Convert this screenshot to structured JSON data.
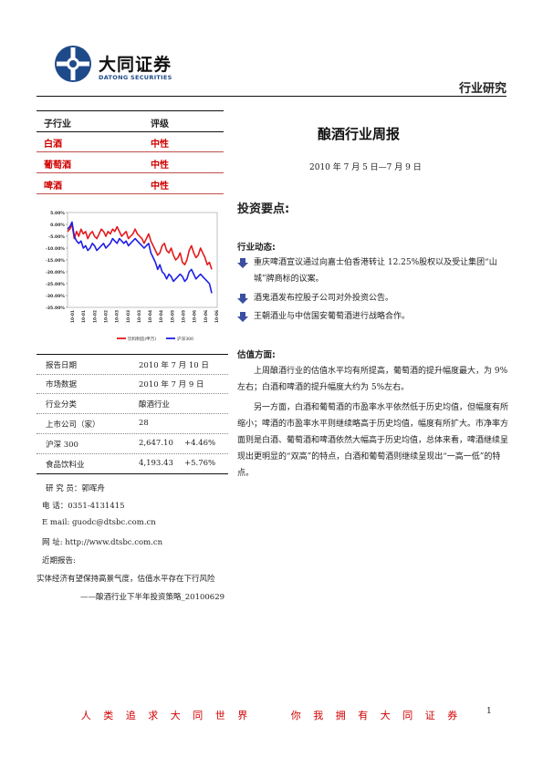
{
  "header": {
    "logo_cn": "大同证券",
    "logo_en": "DATONG SECURITIES",
    "report_type": "行业研究"
  },
  "ratings": {
    "col1": "子行业",
    "col2": "评级",
    "rows": [
      {
        "sector": "白酒",
        "rating": "中性"
      },
      {
        "sector": "葡萄酒",
        "rating": "中性"
      },
      {
        "sector": "啤酒",
        "rating": "中性"
      }
    ]
  },
  "chart_data": {
    "type": "line",
    "x_labels": [
      "10-01",
      "10-01",
      "10-02",
      "10-02",
      "10-03",
      "10-03",
      "10-03",
      "10-04",
      "10-04",
      "10-05",
      "10-05",
      "10-06",
      "10-06",
      "10-06"
    ],
    "yticks": [
      "5.00%",
      "0.00%",
      "-5.00%",
      "-10.00%",
      "-15.00%",
      "-20.00%",
      "-25.00%",
      "-30.00%",
      "-35.00%"
    ],
    "ylim": [
      -35,
      5
    ],
    "legend": [
      "饮料制造(申万)",
      "沪深300"
    ],
    "colors": [
      "#e31a1c",
      "#1f1fe6"
    ],
    "series": [
      {
        "name": "饮料制造(申万)",
        "values": [
          -3,
          -2,
          0,
          -6,
          -3,
          -5,
          -2,
          -4,
          -3,
          -6,
          -4,
          -3,
          -5,
          -6,
          -4,
          -2,
          -3,
          -5,
          -3,
          -4,
          -2,
          -3,
          -1,
          -3,
          -5,
          -4,
          -3,
          -6,
          -5,
          -4,
          -2,
          -4,
          -5,
          -6,
          -8,
          -6,
          -4,
          -7,
          -9,
          -11,
          -13,
          -12,
          -9,
          -8,
          -11,
          -12,
          -10,
          -13,
          -15,
          -14,
          -12,
          -16,
          -17,
          -15,
          -11,
          -9,
          -12,
          -14,
          -13,
          -10,
          -12,
          -14,
          -17,
          -16,
          -19
        ]
      },
      {
        "name": "沪深300",
        "values": [
          -2,
          -1,
          1,
          -5,
          -7,
          -8,
          -7,
          -10,
          -9,
          -11,
          -10,
          -8,
          -9,
          -11,
          -10,
          -9,
          -8,
          -10,
          -9,
          -8,
          -6,
          -7,
          -8,
          -6,
          -7,
          -8,
          -7,
          -9,
          -8,
          -7,
          -6,
          -7,
          -8,
          -9,
          -10,
          -9,
          -8,
          -12,
          -14,
          -16,
          -19,
          -17,
          -20,
          -21,
          -23,
          -21,
          -22,
          -24,
          -23,
          -22,
          -21,
          -22,
          -24,
          -23,
          -20,
          -19,
          -21,
          -23,
          -22,
          -21,
          -22,
          -23,
          -24,
          -25,
          -29
        ]
      }
    ]
  },
  "info": [
    {
      "label": "报告日期",
      "value": "2010 年 7 月 10 日",
      "extra": ""
    },
    {
      "label": "市场数据",
      "value": "2010 年 7 月 9 日",
      "extra": ""
    },
    {
      "label": "行业分类",
      "value": "酿酒行业",
      "extra": ""
    },
    {
      "label": "上市公司（家）",
      "value": "28",
      "extra": ""
    },
    {
      "label": "沪深 300",
      "value": "2,647.10",
      "extra": "+4.46%"
    },
    {
      "label": "食品饮料业",
      "value": "4,193.43",
      "extra": "+5.76%"
    }
  ],
  "contact": {
    "analyst": "研  究  员：郭晖舟",
    "phone": "电      话：0351-4131415",
    "email": "E      mail:   guodc@dtsbc.com.cn",
    "web": "网      址:   http://www.dtsbc.com.cn",
    "recent_label": "近期报告:",
    "recent_1": "实体经济有望保持高景气度，估值水平存在下行风险",
    "recent_2": "——酿酒行业下半年投资策略_20100629"
  },
  "main": {
    "title": "酿酒行业周报",
    "date": "2010 年 7 月 5 日—7 月 9 日",
    "points_heading": "投资要点:",
    "industry_heading": "行业动态:",
    "bullets": [
      "重庆啤酒宣议通过向嘉士伯香港转让 12.25%股权以及受让集团“山城”牌商标的议案。",
      "酒鬼酒发布控股子公司对外投资公告。",
      "王朝酒业与中信国安葡萄酒进行战略合作。"
    ],
    "valuation_heading": "估值方面:",
    "para1": "上周酿酒行业的估值水平均有所提高，葡萄酒的提升幅度最大，为 9%左右；白酒和啤酒的提升幅度大约为 5%左右。",
    "para2": "另一方面，白酒和葡萄酒的市盈率水平依然低于历史均值，但幅度有所缩小；啤酒的市盈率水平则继续略高于历史均值，幅度有所扩大。市净率方面则是白酒、葡萄酒和啤酒依然大幅高于历史均值，总体来看，啤酒继续呈现出更明显的“双高”的特点，白酒和葡萄酒则继续呈现出“一高一低”的特点。"
  },
  "footer": {
    "slogan": "人 类 追 求 大 同 世 界     你 我 拥 有 大 同 证 券",
    "page": "1"
  }
}
